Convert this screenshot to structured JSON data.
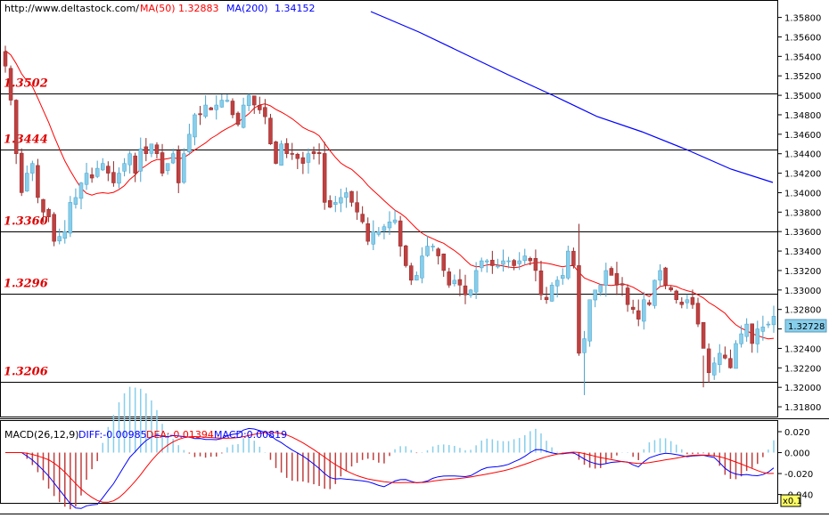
{
  "header": {
    "url": "http://www.deltastock.com/",
    "ma50_label": "MA(50)",
    "ma50_value": "1.32883",
    "ma200_label": "MA(200)",
    "ma200_value": "1.34152"
  },
  "macd_header": {
    "name": "MACD(26,12,9)",
    "diff": "DIFF:-0.00985",
    "dea": "DEA:-0.01394",
    "macd": "MACD:0.00819"
  },
  "current_price": "1.32728",
  "zoom_label": "x0.1",
  "colors": {
    "bull": "#87CEEB",
    "bear": "#C04040",
    "ma50": "#ff0000",
    "ma200": "#0000ff",
    "level_text": "#e00000",
    "price_box": "#87CEEB",
    "macd_bar": "#C04040",
    "macd_bar_pos": "#87CEEB",
    "diff_line": "#0000ff",
    "dea_line": "#ff0000"
  },
  "chart_data": [
    {
      "type": "candlestick",
      "title": "",
      "ylim": [
        1.317,
        1.3597
      ],
      "y_ticks": [
        "1.35800",
        "1.35600",
        "1.35400",
        "1.35200",
        "1.35000",
        "1.34800",
        "1.34600",
        "1.34400",
        "1.34200",
        "1.34000",
        "1.33800",
        "1.33600",
        "1.33400",
        "1.33200",
        "1.33000",
        "1.32800",
        "1.32600",
        "1.32400",
        "1.32200",
        "1.32000",
        "1.31800"
      ],
      "levels": [
        {
          "value": 1.3502,
          "label": "1.3502"
        },
        {
          "value": 1.3444,
          "label": "1.3444"
        },
        {
          "value": 1.336,
          "label": "1.3360"
        },
        {
          "value": 1.3296,
          "label": "1.3296"
        },
        {
          "value": 1.3206,
          "label": "1.3206"
        }
      ],
      "closes": [
        1.353,
        1.3495,
        1.344,
        1.34,
        1.342,
        1.343,
        1.3395,
        1.338,
        1.3375,
        1.335,
        1.3355,
        1.336,
        1.339,
        1.3395,
        1.341,
        1.342,
        1.3415,
        1.3425,
        1.343,
        1.342,
        1.341,
        1.342,
        1.343,
        1.344,
        1.342,
        1.3445,
        1.344,
        1.345,
        1.344,
        1.342,
        1.343,
        1.344,
        1.341,
        1.344,
        1.346,
        1.348,
        1.348,
        1.349,
        1.3485,
        1.349,
        1.3495,
        1.3495,
        1.348,
        1.347,
        1.349,
        1.35,
        1.349,
        1.3485,
        1.3478,
        1.345,
        1.343,
        1.345,
        1.344,
        1.344,
        1.3435,
        1.343,
        1.344,
        1.344,
        1.344,
        1.339,
        1.3385,
        1.339,
        1.3395,
        1.34,
        1.339,
        1.338,
        1.337,
        1.335,
        1.336,
        1.336,
        1.3365,
        1.337,
        1.3372,
        1.3345,
        1.3325,
        1.331,
        1.3315,
        1.3335,
        1.3345,
        1.3345,
        1.3335,
        1.332,
        1.3305,
        1.331,
        1.3305,
        1.3295,
        1.33,
        1.332,
        1.333,
        1.333,
        1.3325,
        1.3325,
        1.333,
        1.333,
        1.3325,
        1.333,
        1.3335,
        1.333,
        1.332,
        1.3295,
        1.329,
        1.3305,
        1.331,
        1.3315,
        1.334,
        1.3325,
        1.3235,
        1.325,
        1.329,
        1.33,
        1.3305,
        1.332,
        1.3315,
        1.3305,
        1.3305,
        1.3285,
        1.328,
        1.327,
        1.329,
        1.3285,
        1.331,
        1.332,
        1.3305,
        1.33,
        1.329,
        1.3285,
        1.329,
        1.3285,
        1.3265,
        1.324,
        1.3215,
        1.3225,
        1.3235,
        1.323,
        1.322,
        1.3245,
        1.3255,
        1.3265,
        1.3245,
        1.326,
        1.3262,
        1.3265,
        1.3273
      ]
    },
    {
      "type": "line",
      "title": "MACD(26,12,9)",
      "ylim": [
        -0.048,
        0.0302
      ],
      "y_ticks": [
        "0.020",
        "0.000",
        "-0.020",
        "-0.040"
      ],
      "series_names": [
        "DIFF",
        "DEA",
        "MACD"
      ]
    }
  ]
}
